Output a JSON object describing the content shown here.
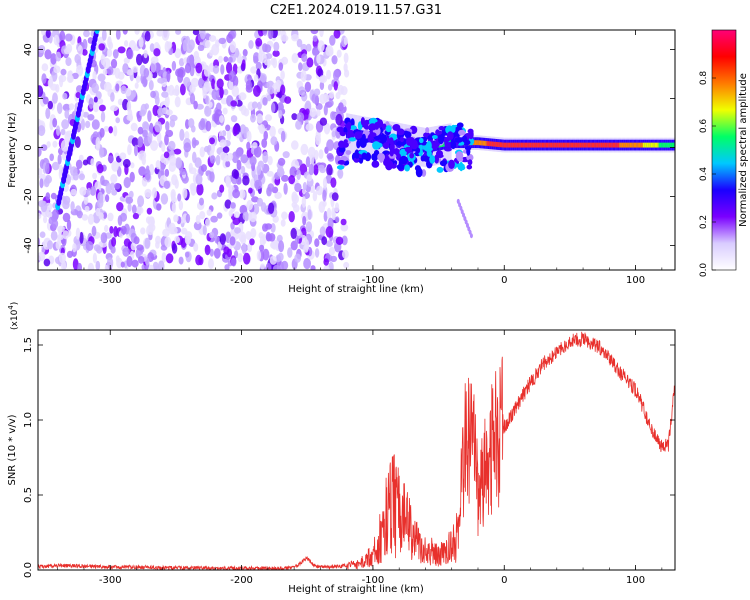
{
  "figure_title": "C2E1.2024.019.11.57.G31",
  "colors": {
    "snr_line": "#e8302c",
    "spec_dense": "#6a00ff",
    "spec_light": "#d6c2ff",
    "ridge_peak": "#ff2d2d"
  },
  "chart_data": [
    {
      "type": "heatmap",
      "title": "",
      "xlabel": "Height of straight line (km)",
      "ylabel": "Frequency (Hz)",
      "xlim": [
        -355,
        130
      ],
      "ylim": [
        -50,
        48
      ],
      "xticks": [
        -300,
        -200,
        -100,
        0,
        100
      ],
      "yticks": [
        -40,
        -20,
        0,
        20,
        40
      ],
      "colorbar": {
        "label": "Normalized spectral amplitude",
        "range": [
          0.0,
          1.0
        ],
        "ticks": [
          0.0,
          0.2,
          0.4,
          0.6,
          0.8
        ],
        "colormap": [
          "#ffffff",
          "#d9ccff",
          "#7a00ff",
          "#1a00ff",
          "#00c8ff",
          "#00ff66",
          "#f0ff00",
          "#ff7a00",
          "#ff0000",
          "#ff0077"
        ]
      },
      "features": {
        "noise_region_x": [
          -355,
          -120
        ],
        "ridge": {
          "x": [
            -120,
            -100,
            -80,
            -60,
            -40,
            -20,
            0,
            40,
            80,
            100,
            130
          ],
          "freq_hz": [
            6,
            4,
            2,
            0,
            2,
            2,
            1,
            1,
            1,
            1,
            1
          ],
          "amplitude": [
            0.3,
            0.35,
            0.4,
            0.45,
            0.7,
            0.85,
            0.95,
            0.95,
            0.9,
            0.85,
            0.6
          ]
        },
        "diagonal_streak": {
          "x": [
            -340,
            -310
          ],
          "freq_hz": [
            -24,
            48
          ]
        },
        "drop_branch": {
          "x": [
            -35,
            -25
          ],
          "freq_hz": [
            -22,
            -36
          ]
        }
      }
    },
    {
      "type": "line",
      "title": "",
      "xlabel": "Height of straight line (km)",
      "ylabel": "SNR (10 * v/v)",
      "y_exponent_label": "(x10",
      "y_exponent_power": "4",
      "y_exponent_close": ")",
      "xlim": [
        -355,
        130
      ],
      "ylim": [
        0,
        1.6
      ],
      "xticks": [
        -300,
        -200,
        -100,
        0,
        100
      ],
      "yticks": [
        0.0,
        0.5,
        1.0,
        1.5
      ],
      "ytick_labels": [
        "0.0",
        "0.5",
        "1.0",
        "1.5"
      ],
      "series": [
        {
          "x": [
            -355,
            -340,
            -320,
            -300,
            -280,
            -260,
            -240,
            -220,
            -200,
            -180,
            -160,
            -150,
            -145,
            -140,
            -130,
            -120,
            -110,
            -100,
            -95,
            -90,
            -85,
            -80,
            -75,
            -70,
            -65,
            -60,
            -55,
            -50,
            -45,
            -40,
            -35,
            -30,
            -25,
            -20,
            -15,
            -10,
            -5,
            0,
            10,
            20,
            30,
            40,
            50,
            60,
            70,
            80,
            90,
            100,
            105,
            110,
            115,
            120,
            125,
            130
          ],
          "y": [
            0.02,
            0.03,
            0.025,
            0.02,
            0.02,
            0.015,
            0.015,
            0.012,
            0.012,
            0.012,
            0.015,
            0.08,
            0.03,
            0.02,
            0.02,
            0.03,
            0.06,
            0.12,
            0.25,
            0.45,
            0.55,
            0.5,
            0.4,
            0.28,
            0.22,
            0.15,
            0.15,
            0.12,
            0.14,
            0.2,
            0.3,
            0.8,
            0.95,
            0.5,
            0.65,
            0.8,
            0.9,
            0.95,
            1.1,
            1.25,
            1.38,
            1.45,
            1.52,
            1.54,
            1.5,
            1.42,
            1.3,
            1.2,
            1.1,
            0.98,
            0.9,
            0.82,
            0.83,
            1.25
          ]
        }
      ]
    }
  ]
}
